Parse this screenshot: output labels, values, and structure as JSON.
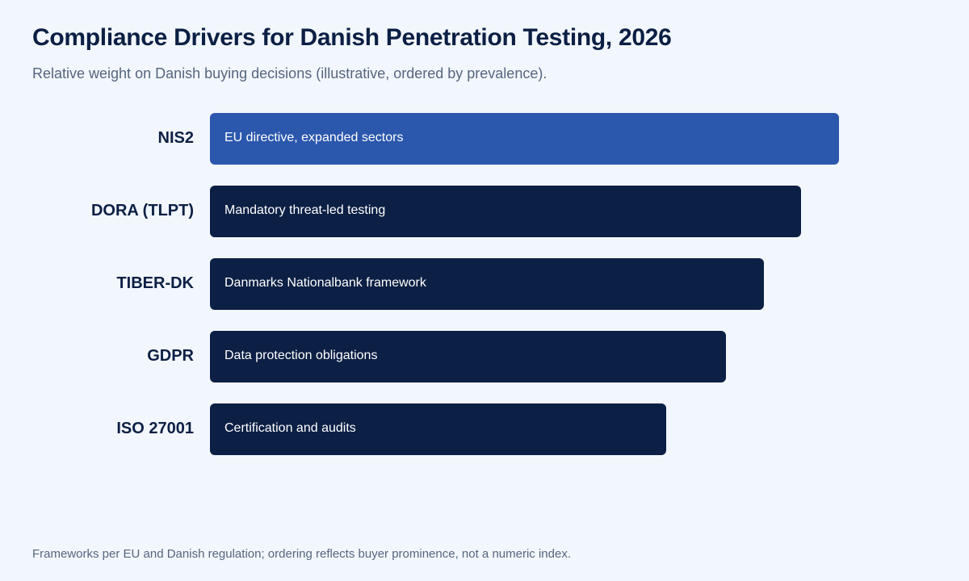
{
  "title": "Compliance Drivers for Danish Penetration Testing, 2026",
  "subtitle": "Relative weight on Danish buying decisions (illustrative, ordered by prevalence).",
  "footnote": "Frameworks per EU and Danish regulation; ordering reflects buyer prominence, not a numeric index.",
  "colors": {
    "background": "#f2f7fd",
    "highlight_bar": "#2b57ad",
    "bar": "#0c1f44",
    "bar_text": "#ffffff",
    "label_text": "#0c1f44",
    "muted_text": "#56657f"
  },
  "chart_data": {
    "type": "bar",
    "orientation": "horizontal",
    "title": "Compliance Drivers for Danish Penetration Testing, 2026",
    "subtitle": "Relative weight on Danish buying decisions (illustrative, ordered by prevalence).",
    "categories": [
      "NIS2",
      "DORA (TLPT)",
      "TIBER-DK",
      "GDPR",
      "ISO 27001"
    ],
    "values": [
      100,
      94,
      88,
      82,
      72.5
    ],
    "annotations": [
      "EU directive, expanded sectors",
      "Mandatory threat-led testing",
      "Danmarks Nationalbank framework",
      "Data protection obligations",
      "Certification and audits"
    ],
    "highlighted_category": "NIS2",
    "xlim": [
      0,
      100
    ],
    "grid": false,
    "axes_shown": false
  }
}
